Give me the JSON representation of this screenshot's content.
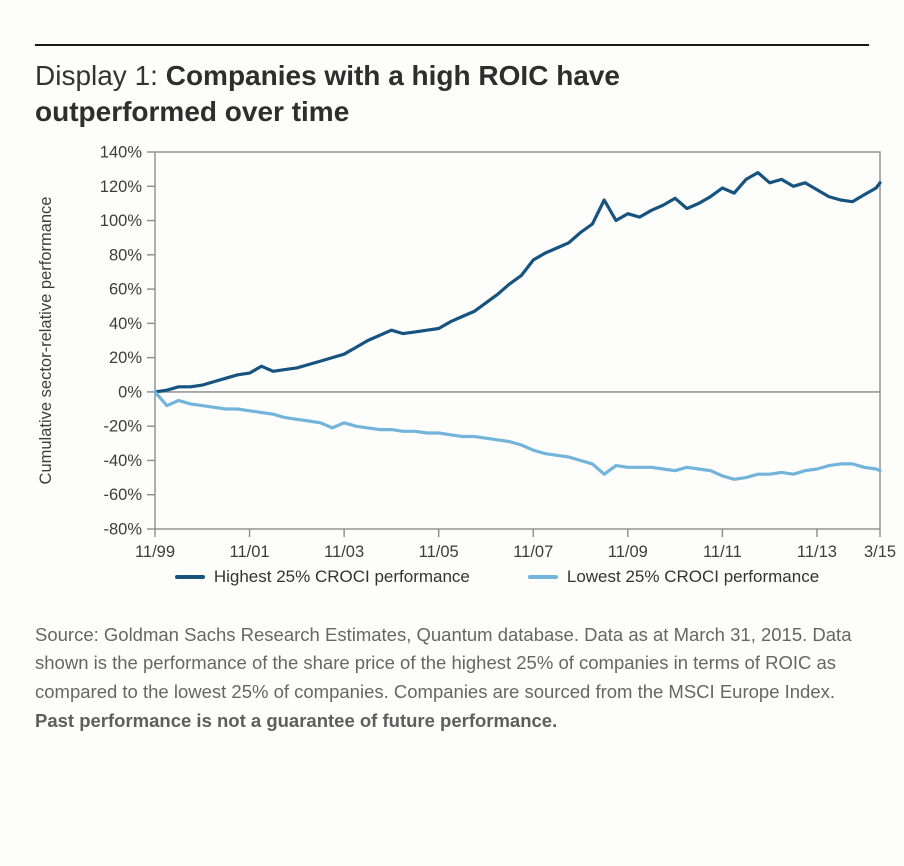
{
  "page": {
    "title_prefix": "Display 1: ",
    "title_bold": "Companies with a high ROIC have outperformed over time"
  },
  "legend": {
    "items": [
      {
        "label": "Highest 25% CROCI performance",
        "color": "#17537F"
      },
      {
        "label": "Lowest 25% CROCI performance",
        "color": "#73B4DB"
      }
    ]
  },
  "source_note": {
    "normal": "Source: Goldman Sachs Research Estimates, Quantum database. Data as at March 31, 2015. Data shown is the performance of the share price of the highest 25% of companies in terms of ROIC as compared to the lowest 25% of companies. Companies are sourced from the MSCI Europe Index. ",
    "bold": "Past performance is not a guarantee of future performance."
  },
  "colors": {
    "series_high": "#17537F",
    "series_low": "#73B4DB",
    "plot_border": "#8c8c8c",
    "zero_line": "#999999",
    "tick_text": "#3d3d3d",
    "top_rule": "#1a1a1a"
  },
  "chart_data": {
    "type": "line",
    "title": "",
    "xlabel": "",
    "ylabel": "Cumulative sector-relative performance",
    "ylim": [
      -80,
      140
    ],
    "ytick_step": 20,
    "ytick_labels": [
      "140%",
      "120%",
      "100%",
      "80%",
      "60%",
      "40%",
      "20%",
      "0%",
      "-20%",
      "-40%",
      "-60%",
      "-80%"
    ],
    "grid": "zero-line-only",
    "legend_position": "bottom",
    "x_unit": "months since Nov-1999",
    "x_months": [
      0,
      3,
      6,
      9,
      12,
      15,
      18,
      21,
      24,
      27,
      30,
      33,
      36,
      39,
      42,
      45,
      48,
      51,
      54,
      57,
      60,
      63,
      66,
      69,
      72,
      75,
      78,
      81,
      84,
      87,
      90,
      93,
      96,
      99,
      102,
      105,
      108,
      111,
      114,
      117,
      120,
      123,
      126,
      129,
      132,
      135,
      138,
      141,
      144,
      147,
      150,
      153,
      156,
      159,
      162,
      165,
      168,
      171,
      174,
      177,
      180,
      183,
      184
    ],
    "xticks": [
      {
        "month": 0,
        "label": "11/99"
      },
      {
        "month": 24,
        "label": "11/01"
      },
      {
        "month": 48,
        "label": "11/03"
      },
      {
        "month": 72,
        "label": "11/05"
      },
      {
        "month": 96,
        "label": "11/07"
      },
      {
        "month": 120,
        "label": "11/09"
      },
      {
        "month": 144,
        "label": "11/11"
      },
      {
        "month": 168,
        "label": "11/13"
      },
      {
        "month": 184,
        "label": "3/15"
      }
    ],
    "series": [
      {
        "name": "Highest 25% CROCI performance",
        "color": "#17537F",
        "values": [
          0,
          1,
          3,
          3,
          4,
          6,
          8,
          10,
          11,
          15,
          12,
          13,
          14,
          16,
          18,
          20,
          22,
          26,
          30,
          33,
          36,
          34,
          35,
          36,
          37,
          41,
          44,
          47,
          52,
          57,
          63,
          68,
          77,
          81,
          84,
          87,
          93,
          98,
          112,
          100,
          104,
          102,
          106,
          109,
          113,
          107,
          110,
          114,
          119,
          116,
          124,
          128,
          122,
          124,
          120,
          122,
          118,
          114,
          112,
          111,
          115,
          119,
          122
        ]
      },
      {
        "name": "Lowest 25% CROCI performance",
        "color": "#73B4DB",
        "values": [
          0,
          -8,
          -5,
          -7,
          -8,
          -9,
          -10,
          -10,
          -11,
          -12,
          -13,
          -15,
          -16,
          -17,
          -18,
          -21,
          -18,
          -20,
          -21,
          -22,
          -22,
          -23,
          -23,
          -24,
          -24,
          -25,
          -26,
          -26,
          -27,
          -28,
          -29,
          -31,
          -34,
          -36,
          -37,
          -38,
          -40,
          -42,
          -48,
          -43,
          -44,
          -44,
          -44,
          -45,
          -46,
          -44,
          -45,
          -46,
          -49,
          -51,
          -50,
          -48,
          -48,
          -47,
          -48,
          -46,
          -45,
          -43,
          -42,
          -42,
          -44,
          -45,
          -46
        ]
      }
    ]
  }
}
